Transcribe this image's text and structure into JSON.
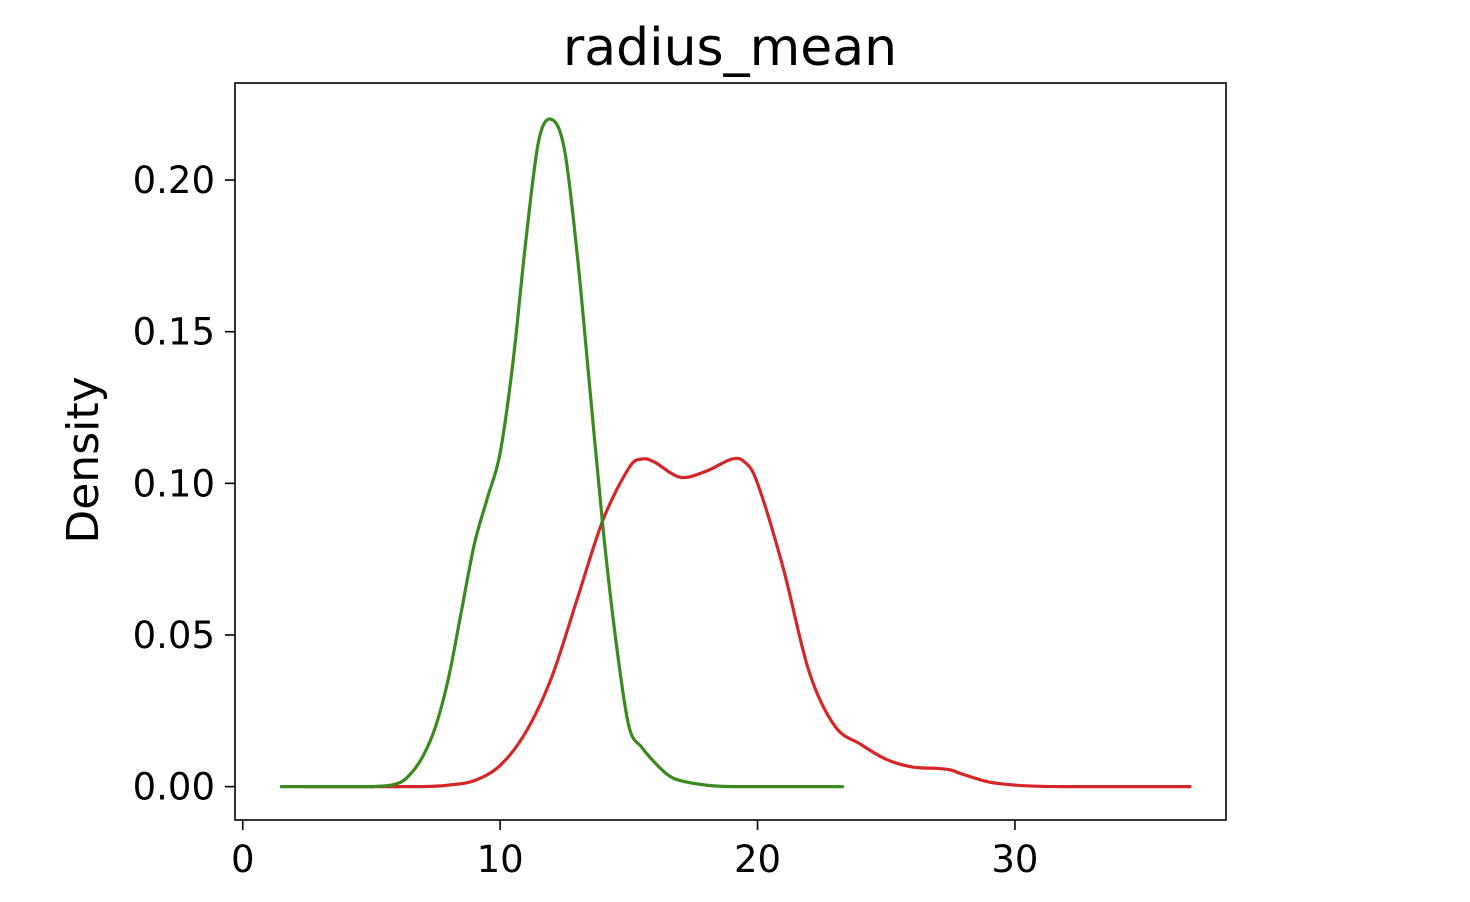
{
  "chart_data": {
    "type": "line",
    "title": "radius_mean",
    "xlabel": "",
    "ylabel": "Density",
    "xlim": [
      -0.3,
      38.2
    ],
    "ylim": [
      -0.011,
      0.232
    ],
    "x_ticks": [
      0,
      10,
      20,
      30
    ],
    "x_tick_labels": [
      "0",
      "10",
      "20",
      "30"
    ],
    "y_ticks": [
      0.0,
      0.05,
      0.1,
      0.15,
      0.2
    ],
    "y_tick_labels": [
      "0.00",
      "0.05",
      "0.10",
      "0.15",
      "0.20"
    ],
    "grid": false,
    "legend": "none",
    "series": [
      {
        "color": "#d62728",
        "x": [
          2.4,
          4.0,
          6.0,
          7.0,
          8.0,
          9.0,
          10.0,
          11.0,
          12.0,
          13.0,
          14.0,
          15.0,
          15.5,
          16.0,
          17.0,
          18.0,
          19.0,
          19.5,
          20.0,
          21.0,
          22.0,
          23.0,
          24.0,
          25.0,
          26.0,
          27.0,
          27.5,
          28.0,
          29.0,
          30.0,
          31.0,
          32.0,
          34.0,
          36.8
        ],
        "y": [
          0.0,
          0.0,
          0.0,
          0.0,
          0.0005,
          0.002,
          0.007,
          0.018,
          0.036,
          0.062,
          0.088,
          0.105,
          0.108,
          0.107,
          0.102,
          0.104,
          0.108,
          0.107,
          0.1,
          0.072,
          0.038,
          0.02,
          0.014,
          0.009,
          0.0065,
          0.006,
          0.0055,
          0.004,
          0.0015,
          0.0005,
          0.0001,
          0.0,
          0.0,
          0.0
        ]
      },
      {
        "color": "#3a8a1f",
        "x": [
          1.5,
          3.0,
          5.0,
          6.0,
          6.5,
          7.0,
          7.5,
          8.0,
          8.5,
          9.0,
          9.5,
          10.0,
          10.5,
          11.0,
          11.5,
          12.0,
          12.5,
          13.0,
          13.5,
          14.0,
          14.5,
          15.0,
          15.5,
          16.0,
          16.5,
          17.0,
          18.0,
          19.0,
          20.0,
          21.0,
          23.3
        ],
        "y": [
          0.0,
          0.0,
          0.0,
          0.001,
          0.004,
          0.01,
          0.02,
          0.036,
          0.058,
          0.08,
          0.095,
          0.11,
          0.14,
          0.18,
          0.213,
          0.22,
          0.21,
          0.175,
          0.13,
          0.085,
          0.048,
          0.02,
          0.013,
          0.008,
          0.004,
          0.002,
          0.0005,
          0.0,
          0.0,
          0.0,
          0.0
        ]
      }
    ]
  }
}
